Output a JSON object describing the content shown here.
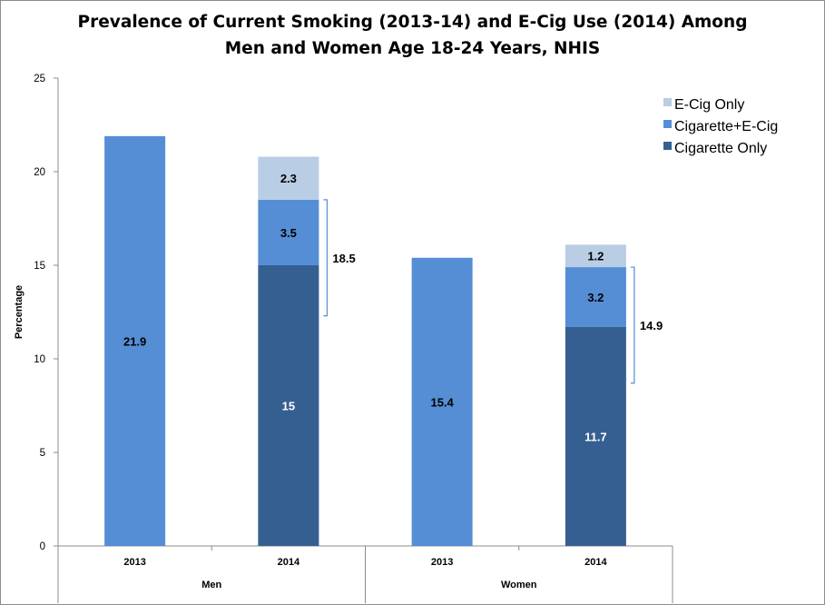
{
  "chart_data": {
    "type": "bar",
    "title_lines": [
      "Prevalence of Current Smoking (2013-14)  and E-Cig Use (2014) Among",
      "Men and Women Age 18-24 Years, NHIS"
    ],
    "ylabel": "Percentage",
    "ylim": [
      0,
      25
    ],
    "yticks": [
      "0",
      "5",
      "10",
      "15",
      "20",
      "25"
    ],
    "groups": [
      "Men",
      "Women"
    ],
    "categories": [
      {
        "label": "2013",
        "group": "Men"
      },
      {
        "label": "2014",
        "group": "Men"
      },
      {
        "label": "2013",
        "group": "Women"
      },
      {
        "label": "2014",
        "group": "Women"
      }
    ],
    "series": [
      {
        "name": "Cigarette Only",
        "color": "#355f91",
        "values": [
          null,
          15,
          null,
          11.7
        ],
        "labels": [
          null,
          "15",
          null,
          "11.7"
        ]
      },
      {
        "name": "Cigarette+E-Cig",
        "color": "#558ed5",
        "values": [
          21.9,
          3.5,
          15.4,
          3.2
        ],
        "labels": [
          "21.9",
          "3.5",
          "15.4",
          "3.2"
        ]
      },
      {
        "name": "E-Cig Only",
        "color": "#b9cde5",
        "values": [
          null,
          2.3,
          null,
          1.2
        ],
        "labels": [
          null,
          "2.3",
          null,
          "1.2"
        ]
      }
    ],
    "legend_order": [
      "E-Cig Only",
      "Cigarette+E-Cig",
      "Cigarette Only"
    ],
    "legend_position": "top-right",
    "brackets": [
      {
        "category_index": 1,
        "from": 0,
        "to": 18.5,
        "label": "18.5"
      },
      {
        "category_index": 3,
        "from": 0,
        "to": 14.9,
        "label": "14.9"
      }
    ],
    "grid": false
  }
}
